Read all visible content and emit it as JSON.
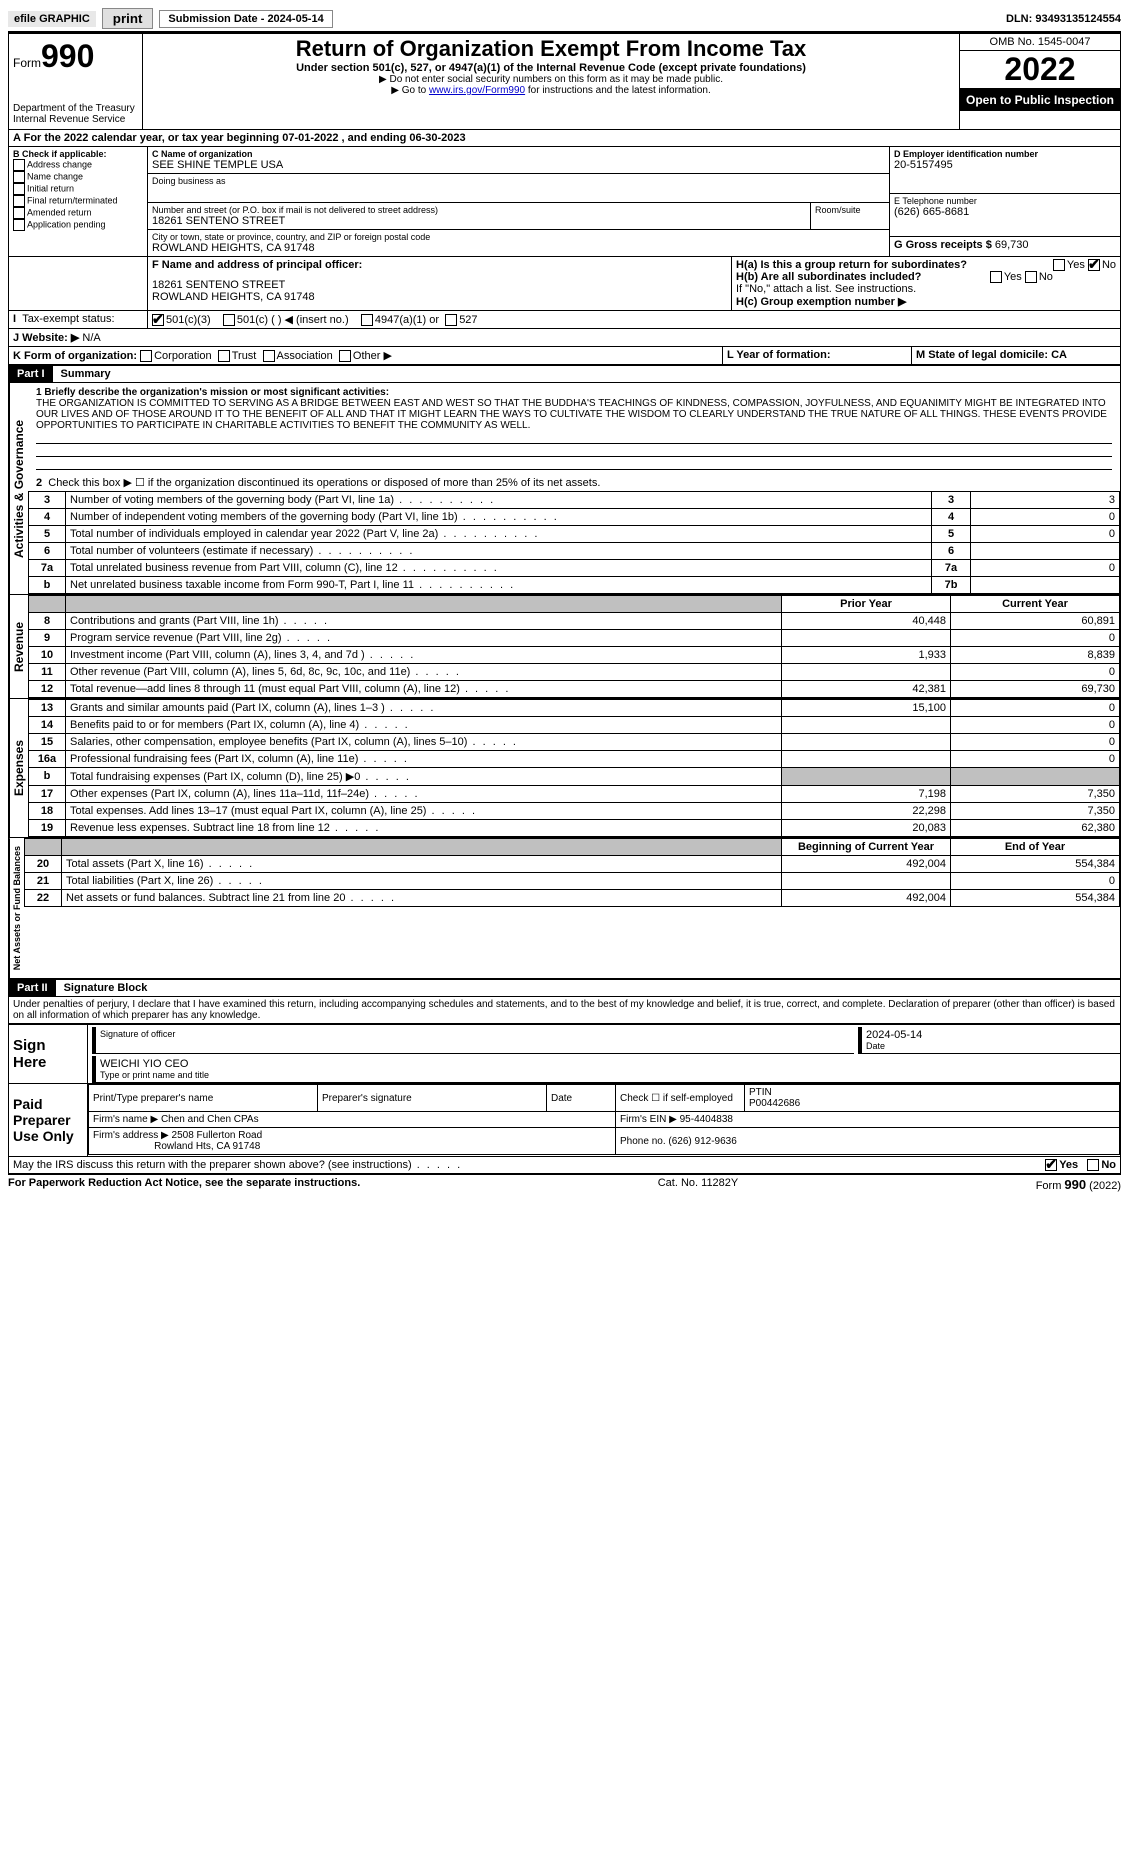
{
  "topbar": {
    "efile": "efile GRAPHIC",
    "print": "print",
    "submission": "Submission Date - 2024-05-14",
    "dln": "DLN: 93493135124554"
  },
  "header": {
    "form_word": "Form",
    "form_num": "990",
    "dept": "Department of the Treasury",
    "irs": "Internal Revenue Service",
    "title": "Return of Organization Exempt From Income Tax",
    "subtitle": "Under section 501(c), 527, or 4947(a)(1) of the Internal Revenue Code (except private foundations)",
    "note1": "▶ Do not enter social security numbers on this form as it may be made public.",
    "note2_pre": "▶ Go to ",
    "note2_link": "www.irs.gov/Form990",
    "note2_post": " for instructions and the latest information.",
    "omb": "OMB No. 1545-0047",
    "year": "2022",
    "open": "Open to Public Inspection"
  },
  "period": {
    "line": "For the 2022 calendar year, or tax year beginning 07-01-2022    , and ending 06-30-2023"
  },
  "blockB": {
    "title": "B Check if applicable:",
    "opts": [
      "Address change",
      "Name change",
      "Initial return",
      "Final return/terminated",
      "Amended return",
      "Application pending"
    ]
  },
  "blockC": {
    "name_label": "C Name of organization",
    "name": "SEE SHINE TEMPLE USA",
    "dba_label": "Doing business as",
    "addr_label": "Number and street (or P.O. box if mail is not delivered to street address)",
    "room_label": "Room/suite",
    "addr": "18261 SENTENO STREET",
    "city_label": "City or town, state or province, country, and ZIP or foreign postal code",
    "city": "ROWLAND HEIGHTS, CA  91748"
  },
  "blockD": {
    "label": "D Employer identification number",
    "val": "20-5157495"
  },
  "blockE": {
    "label": "E Telephone number",
    "val": "(626) 665-8681"
  },
  "blockG": {
    "label": "G Gross receipts $",
    "val": "69,730"
  },
  "blockF": {
    "label": "F Name and address of principal officer:",
    "addr1": "18261 SENTENO STREET",
    "addr2": "ROWLAND HEIGHTS, CA  91748"
  },
  "blockH": {
    "ha": "H(a)  Is this a group return for subordinates?",
    "hb": "H(b)  Are all subordinates included?",
    "hb_note": "If \"No,\" attach a list. See instructions.",
    "hc": "H(c)  Group exemption number ▶"
  },
  "taxExempt": {
    "label": "Tax-exempt status:",
    "o1": "501(c)(3)",
    "o2": "501(c) (   ) ◀ (insert no.)",
    "o3": "4947(a)(1) or",
    "o4": "527"
  },
  "blockJ": {
    "label": "J   Website: ▶",
    "val": "N/A"
  },
  "blockK": {
    "label": "K Form of organization:",
    "opts": [
      "Corporation",
      "Trust",
      "Association",
      "Other ▶"
    ]
  },
  "blockL": {
    "label": "L Year of formation:"
  },
  "blockM": {
    "label": "M State of legal domicile: CA"
  },
  "part1": {
    "header": "Part I",
    "title": "Summary",
    "line1_label": "1  Briefly describe the organization's mission or most significant activities:",
    "mission": "THE ORGANIZATION IS COMMITTED TO SERVING AS A BRIDGE BETWEEN EAST AND WEST SO THAT THE BUDDHA'S TEACHINGS OF KINDNESS, COMPASSION, JOYFULNESS, AND EQUANIMITY MIGHT BE INTEGRATED INTO OUR LIVES AND OF THOSE AROUND IT TO THE BENEFIT OF ALL AND THAT IT MIGHT LEARN THE WAYS TO CULTIVATE THE WISDOM TO CLEARLY UNDERSTAND THE TRUE NATURE OF ALL THINGS. THESE EVENTS PROVIDE OPPORTUNITIES TO PARTICIPATE IN CHARITABLE ACTIVITIES TO BENEFIT THE COMMUNITY AS WELL.",
    "line2": "Check this box ▶ ☐  if the organization discontinued its operations or disposed of more than 25% of its net assets.",
    "gov_rows": [
      {
        "n": "3",
        "t": "Number of voting members of the governing body (Part VI, line 1a)",
        "box": "3",
        "v": "3"
      },
      {
        "n": "4",
        "t": "Number of independent voting members of the governing body (Part VI, line 1b)",
        "box": "4",
        "v": "0"
      },
      {
        "n": "5",
        "t": "Total number of individuals employed in calendar year 2022 (Part V, line 2a)",
        "box": "5",
        "v": "0"
      },
      {
        "n": "6",
        "t": "Total number of volunteers (estimate if necessary)",
        "box": "6",
        "v": ""
      },
      {
        "n": "7a",
        "t": "Total unrelated business revenue from Part VIII, column (C), line 12",
        "box": "7a",
        "v": "0"
      },
      {
        "n": "b",
        "t": "Net unrelated business taxable income from Form 990-T, Part I, line 11",
        "box": "7b",
        "v": ""
      }
    ],
    "col_prior": "Prior Year",
    "col_current": "Current Year",
    "rev_rows": [
      {
        "n": "8",
        "t": "Contributions and grants (Part VIII, line 1h)",
        "p": "40,448",
        "c": "60,891"
      },
      {
        "n": "9",
        "t": "Program service revenue (Part VIII, line 2g)",
        "p": "",
        "c": "0"
      },
      {
        "n": "10",
        "t": "Investment income (Part VIII, column (A), lines 3, 4, and 7d )",
        "p": "1,933",
        "c": "8,839"
      },
      {
        "n": "11",
        "t": "Other revenue (Part VIII, column (A), lines 5, 6d, 8c, 9c, 10c, and 11e)",
        "p": "",
        "c": "0"
      },
      {
        "n": "12",
        "t": "Total revenue—add lines 8 through 11 (must equal Part VIII, column (A), line 12)",
        "p": "42,381",
        "c": "69,730"
      }
    ],
    "exp_rows": [
      {
        "n": "13",
        "t": "Grants and similar amounts paid (Part IX, column (A), lines 1–3 )",
        "p": "15,100",
        "c": "0"
      },
      {
        "n": "14",
        "t": "Benefits paid to or for members (Part IX, column (A), line 4)",
        "p": "",
        "c": "0"
      },
      {
        "n": "15",
        "t": "Salaries, other compensation, employee benefits (Part IX, column (A), lines 5–10)",
        "p": "",
        "c": "0"
      },
      {
        "n": "16a",
        "t": "Professional fundraising fees (Part IX, column (A), line 11e)",
        "p": "",
        "c": "0"
      },
      {
        "n": "b",
        "t": "Total fundraising expenses (Part IX, column (D), line 25) ▶0",
        "p": "SHADE",
        "c": "SHADE"
      },
      {
        "n": "17",
        "t": "Other expenses (Part IX, column (A), lines 11a–11d, 11f–24e)",
        "p": "7,198",
        "c": "7,350"
      },
      {
        "n": "18",
        "t": "Total expenses. Add lines 13–17 (must equal Part IX, column (A), line 25)",
        "p": "22,298",
        "c": "7,350"
      },
      {
        "n": "19",
        "t": "Revenue less expenses. Subtract line 18 from line 12",
        "p": "20,083",
        "c": "62,380"
      }
    ],
    "col_begin": "Beginning of Current Year",
    "col_end": "End of Year",
    "net_rows": [
      {
        "n": "20",
        "t": "Total assets (Part X, line 16)",
        "p": "492,004",
        "c": "554,384"
      },
      {
        "n": "21",
        "t": "Total liabilities (Part X, line 26)",
        "p": "",
        "c": "0"
      },
      {
        "n": "22",
        "t": "Net assets or fund balances. Subtract line 21 from line 20",
        "p": "492,004",
        "c": "554,384"
      }
    ],
    "vert_gov": "Activities & Governance",
    "vert_rev": "Revenue",
    "vert_exp": "Expenses",
    "vert_net": "Net Assets or Fund Balances"
  },
  "part2": {
    "header": "Part II",
    "title": "Signature Block",
    "perjury": "Under penalties of perjury, I declare that I have examined this return, including accompanying schedules and statements, and to the best of my knowledge and belief, it is true, correct, and complete. Declaration of preparer (other than officer) is based on all information of which preparer has any knowledge.",
    "sign_here": "Sign Here",
    "sig_officer": "Signature of officer",
    "sig_date": "2024-05-14",
    "date_label": "Date",
    "officer_name": "WEICHI YIO CEO",
    "type_name": "Type or print name and title",
    "paid": "Paid Preparer Use Only",
    "prep_name_label": "Print/Type preparer's name",
    "prep_sig_label": "Preparer's signature",
    "prep_date_label": "Date",
    "check_if": "Check ☐ if self-employed",
    "ptin_label": "PTIN",
    "ptin": "P00442686",
    "firm_name_label": "Firm's name    ▶",
    "firm_name": "Chen and Chen CPAs",
    "firm_ein_label": "Firm's EIN ▶",
    "firm_ein": "95-4404838",
    "firm_addr_label": "Firm's address ▶",
    "firm_addr1": "2508 Fullerton Road",
    "firm_addr2": "Rowland Hts, CA  91748",
    "phone_label": "Phone no.",
    "phone": "(626) 912-9636",
    "discuss": "May the IRS discuss this return with the preparer shown above? (see instructions)",
    "yes": "Yes",
    "no": "No"
  },
  "footer": {
    "pra": "For Paperwork Reduction Act Notice, see the separate instructions.",
    "cat": "Cat. No. 11282Y",
    "form": "Form 990 (2022)"
  }
}
